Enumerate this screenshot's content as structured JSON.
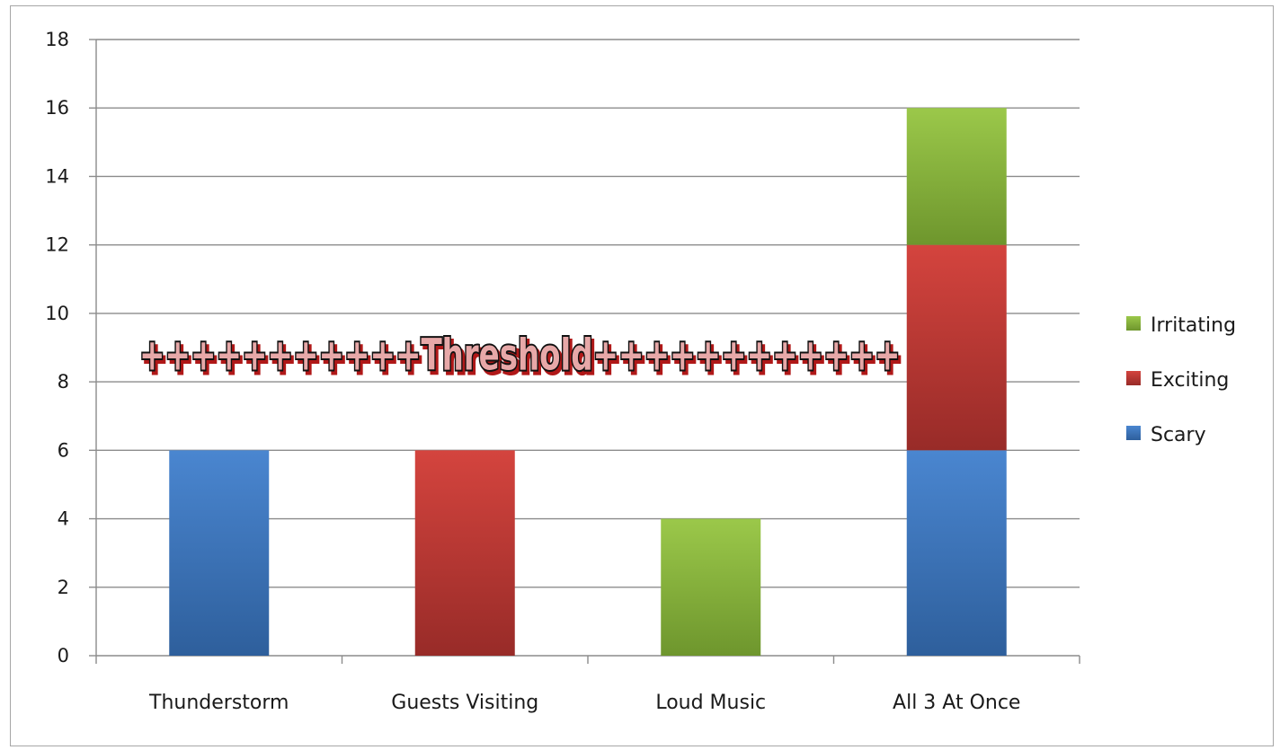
{
  "chart_data": {
    "type": "bar",
    "stacked": true,
    "categories": [
      "Thunderstorm",
      "Guests Visiting",
      "Loud Music",
      "All 3 At Once"
    ],
    "series": [
      {
        "name": "Scary",
        "values": [
          6,
          0,
          0,
          6
        ],
        "color": "#3b73b9"
      },
      {
        "name": "Exciting",
        "values": [
          0,
          6,
          0,
          6
        ],
        "color": "#c0403c"
      },
      {
        "name": "Irritating",
        "values": [
          0,
          0,
          4,
          4
        ],
        "color": "#8db63a"
      }
    ],
    "ylim": [
      0,
      18
    ],
    "yticks": [
      0,
      2,
      4,
      6,
      8,
      10,
      12,
      14,
      16,
      18
    ],
    "grid": true,
    "legend": "right",
    "annotation": {
      "text": "+++++++++++Threshold++++++++++++",
      "label": "Threshold",
      "y": 8.8,
      "x_start": "Thunderstorm",
      "x_end": "Loud Music"
    }
  }
}
